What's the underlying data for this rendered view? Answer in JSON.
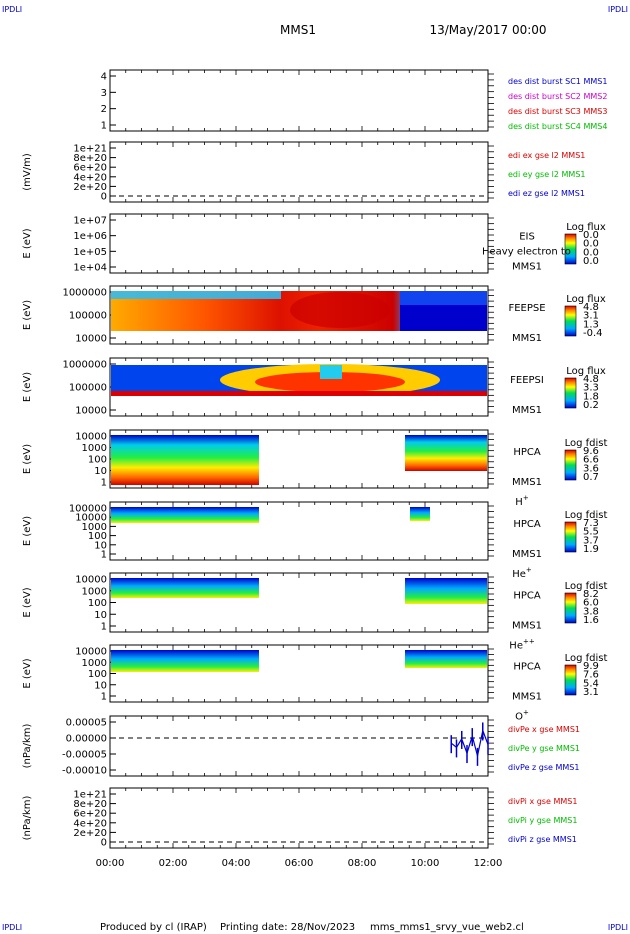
{
  "header": {
    "corner_tl": "IPDLI",
    "corner_tr": "IPDLI",
    "spacecraft": "MMS1",
    "datetime": "13/May/2017 00:00"
  },
  "footer": {
    "corner_bl": "IPDLI",
    "corner_br": "IPDLI",
    "produced_by": "Produced by cl (IRAP)",
    "printing_date": "Printing date: 28/Nov/2023",
    "filename": "mms_mms1_srvy_vue_web2.cl"
  },
  "colors": {
    "mms1": "#0000cc",
    "mms2": "#cc00cc",
    "mms3": "#dd0000",
    "mms4": "#00bb00",
    "x_comp": "#dd0000",
    "y_comp": "#00bb00",
    "z_comp": "#0000cc"
  },
  "chart_data": [
    {
      "type": "line",
      "id": "des-dist",
      "ylabel": "",
      "ylim": [
        0.5,
        4.5
      ],
      "yticks": [
        "4",
        "3",
        "2",
        "1"
      ],
      "legend": [
        "des dist burst SC1 MMS1",
        "des dist burst SC2 MMS2",
        "des dist burst SC3 MMS3",
        "des dist burst SC4 MMS4"
      ],
      "series": []
    },
    {
      "type": "line",
      "id": "edi",
      "ylabel": "(mV/m)",
      "ylim": [
        0,
        1e+21
      ],
      "yticks": [
        "1e+21",
        "8e+20",
        "6e+20",
        "4e+20",
        "2e+20",
        "0"
      ],
      "legend": [
        "edi ex gse l2 MMS1",
        "edi ey gse l2 MMS1",
        "edi ez gse l2 MMS1"
      ],
      "series": []
    },
    {
      "type": "heatmap",
      "id": "eis",
      "ylabel": "E (eV)",
      "scale": "log",
      "yticks": [
        "1e+07",
        "1e+06",
        "1e+05",
        "1e+04"
      ],
      "instrument": "EIS",
      "instrument_sub": "MMS1",
      "overlay_text": "Heavy electron to",
      "colorbar_title": "Log flux",
      "colorbar_ticks": [
        "0.0",
        "0.0",
        "0.0",
        "0.0"
      ]
    },
    {
      "type": "heatmap",
      "id": "feepse",
      "ylabel": "E (eV)",
      "scale": "log",
      "yticks": [
        "1000000",
        "100000",
        "10000"
      ],
      "instrument": "FEEPSE",
      "instrument_sub": "MMS1",
      "colorbar_title": "Log flux",
      "colorbar_ticks": [
        "4.8",
        "3.1",
        "1.3",
        "-0.4"
      ]
    },
    {
      "type": "heatmap",
      "id": "feepsi",
      "ylabel": "E (eV)",
      "scale": "log",
      "yticks": [
        "1000000",
        "100000",
        "10000"
      ],
      "instrument": "FEEPSI",
      "instrument_sub": "MMS1",
      "colorbar_title": "Log flux",
      "colorbar_ticks": [
        "4.8",
        "3.3",
        "1.8",
        "0.2"
      ]
    },
    {
      "type": "heatmap",
      "id": "hpca-h",
      "ylabel": "E (eV)",
      "scale": "log",
      "yticks": [
        "10000",
        "1000",
        "100",
        "10",
        "1"
      ],
      "instrument": "HPCA",
      "instrument_sub": "MMS1",
      "species": "H",
      "species_sup": "+",
      "colorbar_title": "Log fdist",
      "colorbar_ticks": [
        "9.6",
        "6.6",
        "3.6",
        "0.7"
      ]
    },
    {
      "type": "heatmap",
      "id": "hpca-he",
      "ylabel": "E (eV)",
      "scale": "log",
      "yticks": [
        "100000",
        "10000",
        "1000",
        "100",
        "10",
        "1"
      ],
      "instrument": "HPCA",
      "instrument_sub": "MMS1",
      "species": "He",
      "species_sup": "+",
      "colorbar_title": "Log fdist",
      "colorbar_ticks": [
        "7.3",
        "5.5",
        "3.7",
        "1.9"
      ]
    },
    {
      "type": "heatmap",
      "id": "hpca-hepp",
      "ylabel": "E (eV)",
      "scale": "log",
      "yticks": [
        "10000",
        "1000",
        "100",
        "10",
        "1"
      ],
      "instrument": "HPCA",
      "instrument_sub": "MMS1",
      "species": "He",
      "species_sup": "++",
      "colorbar_title": "Log fdist",
      "colorbar_ticks": [
        "8.2",
        "6.0",
        "3.8",
        "1.6"
      ]
    },
    {
      "type": "heatmap",
      "id": "hpca-o",
      "ylabel": "E (eV)",
      "scale": "log",
      "yticks": [
        "10000",
        "1000",
        "100",
        "10",
        "1"
      ],
      "instrument": "HPCA",
      "instrument_sub": "MMS1",
      "species": "O",
      "species_sup": "+",
      "colorbar_title": "Log fdist",
      "colorbar_ticks": [
        "9.9",
        "7.6",
        "5.4",
        "3.1"
      ]
    },
    {
      "type": "line",
      "id": "divpe",
      "ylabel": "(nPa/km)",
      "ylim": [
        -0.0001,
        7e-05
      ],
      "yticks": [
        "0.00005",
        "0.00000",
        "-0.00005",
        "-0.00010"
      ],
      "legend": [
        "divPe x gse MMS1",
        "divPe y gse MMS1",
        "divPe z gse MMS1"
      ],
      "series": [
        {
          "name": "divPe z gse MMS1",
          "x": [
            "10:50",
            "11:00",
            "11:10",
            "11:20",
            "11:30",
            "11:40",
            "11:50",
            "12:00"
          ],
          "values": [
            -5e-06,
            -2e-05,
            1e-05,
            -4e-05,
            2e-05,
            -5e-05,
            4e-05,
            -1e-05
          ]
        }
      ]
    },
    {
      "type": "line",
      "id": "divpi",
      "ylabel": "(nPa/km)",
      "ylim": [
        0,
        1e+21
      ],
      "yticks": [
        "1e+21",
        "8e+20",
        "6e+20",
        "4e+20",
        "2e+20",
        "0"
      ],
      "legend": [
        "divPi x gse MMS1",
        "divPi y gse MMS1",
        "divPi z gse MMS1"
      ],
      "series": []
    }
  ],
  "x_axis": {
    "ticks": [
      "00:00",
      "02:00",
      "04:00",
      "06:00",
      "08:00",
      "10:00",
      "12:00"
    ],
    "range": [
      "00:00",
      "12:00"
    ]
  }
}
